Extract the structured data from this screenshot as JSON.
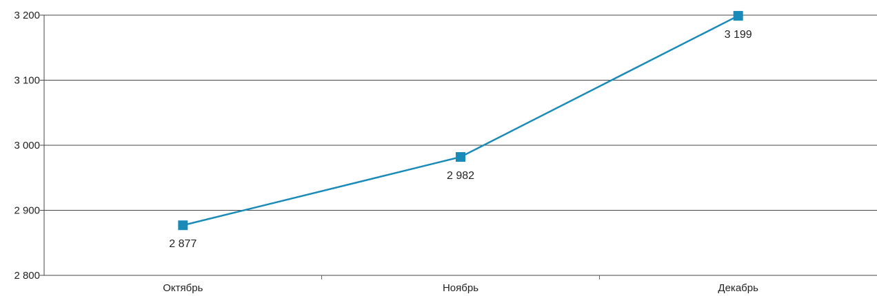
{
  "chart_data": {
    "type": "line",
    "categories": [
      "Октябрь",
      "Ноябрь",
      "Декабрь"
    ],
    "series": [
      {
        "values": [
          2877,
          2982,
          3199
        ],
        "labels": [
          "2 877",
          "2 982",
          "3 199"
        ],
        "color": "#1a8bb8",
        "marker": "square"
      }
    ],
    "y_ticks": [
      2800,
      2900,
      3000,
      3100,
      3200
    ],
    "y_tick_labels": [
      "2 800",
      "2 900",
      "3 000",
      "3 100",
      "3 200"
    ],
    "ylim": [
      2800,
      3200
    ],
    "grid": true,
    "legend": "none"
  }
}
